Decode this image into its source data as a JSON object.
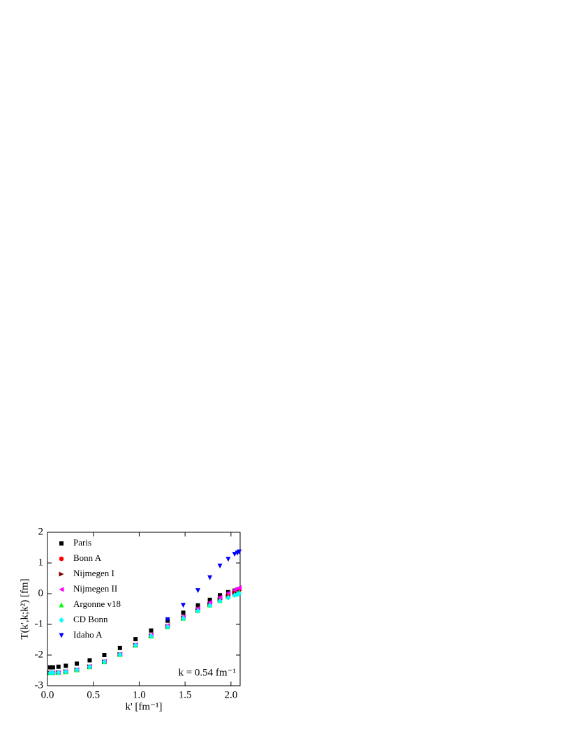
{
  "chart_data": {
    "type": "scatter",
    "xlabel": "k' [fm⁻¹]",
    "ylabel": "T(k',k;k²) [fm]",
    "annotation": "k = 0.54 fm⁻¹",
    "xlim": [
      0,
      2.1
    ],
    "ylim": [
      -3,
      2
    ],
    "xticks": [
      {
        "value": 0,
        "label": "0.0"
      },
      0.5,
      {
        "value": 1,
        "label": "1.0"
      },
      1.5,
      {
        "value": 2,
        "label": "2.0"
      }
    ],
    "yticks": [
      -3,
      -2,
      -1,
      0,
      1,
      2
    ],
    "x": [
      0.03,
      0.06,
      0.12,
      0.2,
      0.32,
      0.46,
      0.62,
      0.79,
      0.96,
      1.13,
      1.31,
      1.48,
      1.64,
      1.77,
      1.88,
      1.97,
      2.04,
      2.07,
      2.09
    ],
    "series": [
      {
        "name": "Paris",
        "color": "#000000",
        "marker": "square",
        "values": [
          -2.4,
          -2.4,
          -2.38,
          -2.35,
          -2.28,
          -2.17,
          -2.0,
          -1.77,
          -1.48,
          -1.2,
          -0.88,
          -0.62,
          -0.38,
          -0.2,
          -0.05,
          0.05,
          0.1,
          0.13,
          0.15
        ]
      },
      {
        "name": "Bonn A",
        "color": "#ff0000",
        "marker": "circle",
        "values": [
          -2.58,
          -2.58,
          -2.57,
          -2.54,
          -2.48,
          -2.38,
          -2.22,
          -1.98,
          -1.68,
          -1.37,
          -1.06,
          -0.78,
          -0.52,
          -0.33,
          -0.18,
          -0.05,
          0.05,
          0.1,
          0.13
        ]
      },
      {
        "name": "Nijmegen I",
        "color": "#800000",
        "marker": "right",
        "values": [
          -2.58,
          -2.58,
          -2.57,
          -2.54,
          -2.48,
          -2.38,
          -2.22,
          -1.98,
          -1.68,
          -1.37,
          -1.07,
          -0.79,
          -0.53,
          -0.35,
          -0.2,
          -0.08,
          0.02,
          0.07,
          0.1
        ]
      },
      {
        "name": "Nijmegen II",
        "color": "#ff00ff",
        "marker": "left",
        "values": [
          -2.58,
          -2.58,
          -2.57,
          -2.54,
          -2.48,
          -2.37,
          -2.21,
          -1.97,
          -1.66,
          -1.34,
          -1.03,
          -0.75,
          -0.48,
          -0.28,
          -0.12,
          0.02,
          0.12,
          0.17,
          0.2
        ]
      },
      {
        "name": "Argonne v18",
        "color": "#00ff00",
        "marker": "up",
        "values": [
          -2.58,
          -2.58,
          -2.57,
          -2.54,
          -2.48,
          -2.38,
          -2.22,
          -1.98,
          -1.68,
          -1.38,
          -1.08,
          -0.8,
          -0.55,
          -0.37,
          -0.22,
          -0.1,
          -0.02,
          0.02,
          0.05
        ]
      },
      {
        "name": "CD Bonn",
        "color": "#00ffff",
        "marker": "diamond",
        "values": [
          -2.58,
          -2.58,
          -2.57,
          -2.54,
          -2.48,
          -2.38,
          -2.22,
          -1.98,
          -1.68,
          -1.38,
          -1.08,
          -0.8,
          -0.56,
          -0.38,
          -0.24,
          -0.13,
          -0.05,
          -0.02,
          0.0
        ]
      },
      {
        "name": "Idaho A",
        "color": "#0000ff",
        "marker": "down",
        "values": [
          null,
          null,
          null,
          null,
          null,
          null,
          null,
          null,
          null,
          null,
          -0.85,
          -0.38,
          0.1,
          0.52,
          0.9,
          1.12,
          1.28,
          1.32,
          1.36
        ]
      }
    ]
  }
}
